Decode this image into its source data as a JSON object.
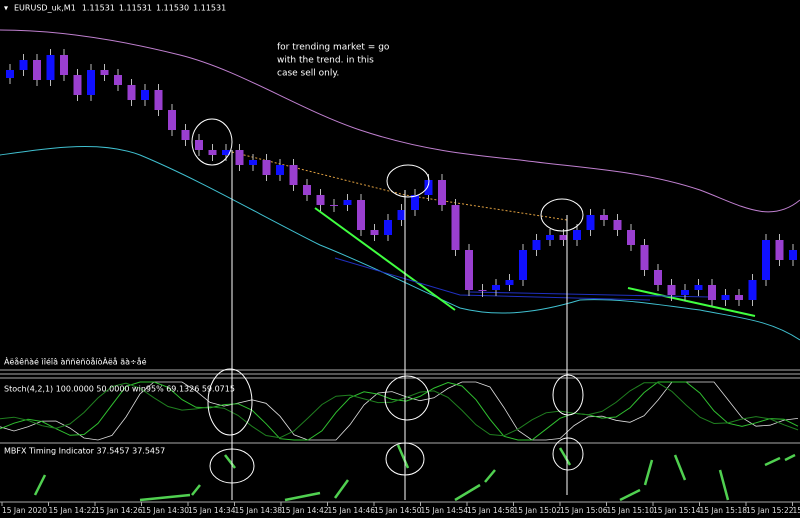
{
  "header": {
    "symbol": "EURUSD_uk,M1",
    "prices": [
      "1.11531",
      "1.11531",
      "1.11530",
      "1.11531"
    ]
  },
  "annotation": [
    "for trending market =  go",
    "with the trend. in this",
    "case sell only."
  ],
  "panes": {
    "main_label": "Àëåêñàé ìîéîâ àññèñòåíòÀëå ãà÷åé",
    "stoch_label": "Stoch(4,2,1) 100.0000 50.0000  win95% 69.1326 59.0715",
    "mbfx_label": "MBFX Timing Indicator 37.5457 37.5457"
  },
  "time_axis": [
    "15 Jan 2020",
    "15 Jan 14:22",
    "15 Jan 14:26",
    "15 Jan 14:30",
    "15 Jan 14:34",
    "15 Jan 14:38",
    "15 Jan 14:42",
    "15 Jan 14:46",
    "15 Jan 14:50",
    "15 Jan 14:54",
    "15 Jan 14:58",
    "15 Jan 15:02",
    "15 Jan 15:06",
    "15 Jan 15:10",
    "15 Jan 15:14",
    "15 Jan 15:18",
    "15 Jan 15:22",
    "15"
  ]
}
